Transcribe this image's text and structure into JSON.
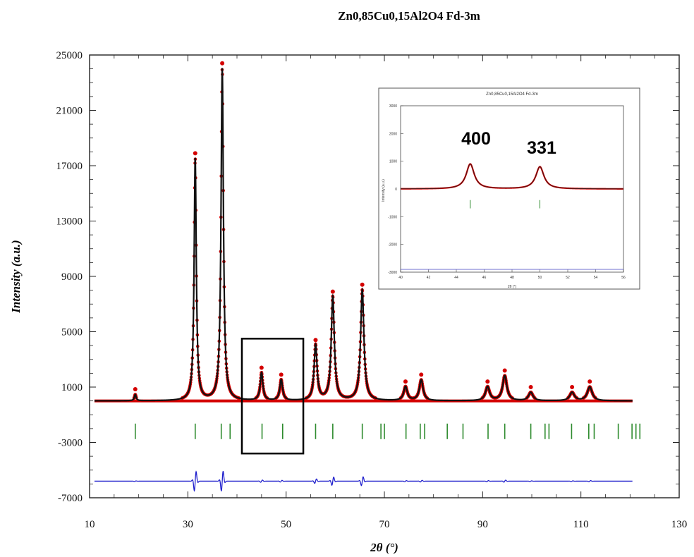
{
  "chart_data": [
    {
      "type": "scatter",
      "title": "Zn0,85Cu0,15Al2O4 Fd-3m",
      "xlabel": "2θ (°)",
      "ylabel": "Intensity (a.u.)",
      "xlim": [
        10,
        130
      ],
      "ylim": [
        -7000,
        25000
      ],
      "xticks": [
        10,
        30,
        50,
        70,
        90,
        110,
        130
      ],
      "yticks": [
        -7000,
        -3000,
        1000,
        5000,
        9000,
        13000,
        17000,
        21000,
        25000
      ],
      "xtick_labels": [
        "10",
        "30",
        "50",
        "70",
        "90",
        "110",
        "130"
      ],
      "ytick_labels": [
        "-7000",
        "-3000",
        "1000",
        "5000",
        "9000",
        "13000",
        "17000",
        "21000",
        "25000"
      ],
      "background": 0,
      "peaks": [
        {
          "x": 19.3,
          "y": 450
        },
        {
          "x": 31.5,
          "y": 17500
        },
        {
          "x": 37.0,
          "y": 24000
        },
        {
          "x": 45.0,
          "y": 2000
        },
        {
          "x": 49.0,
          "y": 1500
        },
        {
          "x": 56.0,
          "y": 4000
        },
        {
          "x": 59.5,
          "y": 7500
        },
        {
          "x": 65.5,
          "y": 8000
        },
        {
          "x": 74.3,
          "y": 1000
        },
        {
          "x": 77.5,
          "y": 1500
        },
        {
          "x": 91.0,
          "y": 1000
        },
        {
          "x": 94.5,
          "y": 1800
        },
        {
          "x": 99.8,
          "y": 600
        },
        {
          "x": 108.2,
          "y": 600
        },
        {
          "x": 111.8,
          "y": 1000
        }
      ],
      "bragg_positions": [
        19.3,
        31.5,
        36.8,
        38.6,
        45.1,
        49.3,
        56.0,
        59.5,
        65.5,
        69.3,
        70.0,
        74.4,
        77.3,
        78.2,
        82.8,
        86.0,
        91.1,
        94.5,
        99.8,
        102.7,
        103.5,
        108.1,
        111.6,
        112.7,
        117.6,
        120.4,
        121.2,
        122.0
      ],
      "bragg_level": -2200,
      "difference_level": -5800,
      "series_colors": {
        "observed": "#d40000",
        "calculated": "#111111",
        "bragg": "#2e8b2e",
        "difference": "#1f1fcc"
      },
      "highlight_box": {
        "x": [
          41,
          53.5
        ],
        "y": [
          -3800,
          4500
        ]
      }
    },
    {
      "type": "scatter",
      "title": "Zn0,85Cu0,15Al2O4 Fd-3m",
      "xlabel": "2θ (°)",
      "ylabel": "Intensity (a.u.)",
      "xlim": [
        40,
        56
      ],
      "ylim": [
        -3000,
        3000
      ],
      "xticks": [
        40,
        42,
        44,
        46,
        48,
        50,
        52,
        54,
        56
      ],
      "yticks": [
        -3000,
        -2000,
        -1000,
        0,
        1000,
        2000,
        3000
      ],
      "annotations": [
        {
          "x": 45.0,
          "text": "400"
        },
        {
          "x": 49.5,
          "text": "331"
        }
      ],
      "peaks": [
        {
          "x": 45.0,
          "y": 900
        },
        {
          "x": 50.0,
          "y": 800
        }
      ]
    }
  ]
}
